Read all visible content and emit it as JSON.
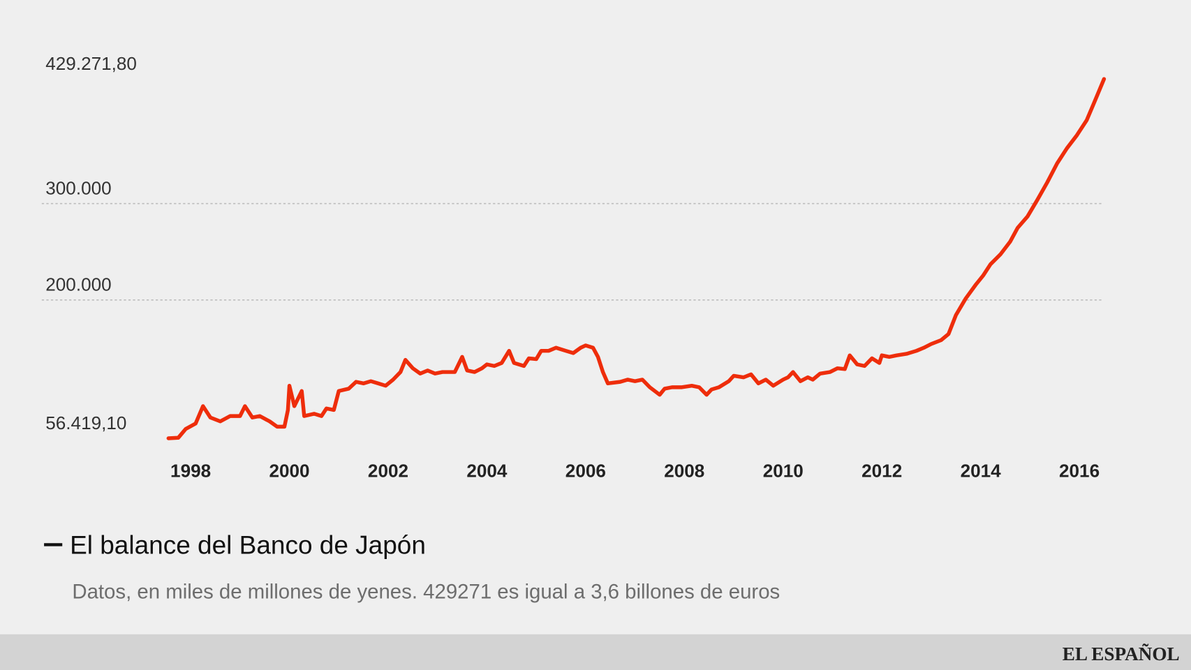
{
  "chart_data": {
    "type": "line",
    "title": "El balance del Banco de Japón",
    "subtitle": "Datos, en miles de millones de yenes. 429271 es igual a 3,6 billones de euros",
    "color": "#ee2d0b",
    "x": [
      1997.55,
      1997.75,
      1997.9,
      1998.1,
      1998.25,
      1998.4,
      1998.6,
      1998.8,
      1999.0,
      1999.1,
      1999.25,
      1999.4,
      1999.6,
      1999.75,
      1999.9,
      1999.97,
      2000.0,
      2000.1,
      2000.25,
      2000.3,
      2000.5,
      2000.65,
      2000.75,
      2000.9,
      2001.0,
      2001.2,
      2001.35,
      2001.5,
      2001.65,
      2001.8,
      2001.95,
      2002.1,
      2002.25,
      2002.35,
      2002.5,
      2002.65,
      2002.8,
      2002.95,
      2003.1,
      2003.35,
      2003.5,
      2003.6,
      2003.75,
      2003.9,
      2004.0,
      2004.15,
      2004.3,
      2004.45,
      2004.55,
      2004.75,
      2004.85,
      2005.0,
      2005.1,
      2005.25,
      2005.4,
      2005.6,
      2005.75,
      2005.9,
      2006.0,
      2006.15,
      2006.25,
      2006.35,
      2006.45,
      2006.7,
      2006.85,
      2007.0,
      2007.15,
      2007.3,
      2007.5,
      2007.6,
      2007.75,
      2007.95,
      2008.15,
      2008.3,
      2008.45,
      2008.55,
      2008.7,
      2008.9,
      2009.0,
      2009.2,
      2009.35,
      2009.5,
      2009.65,
      2009.8,
      2010.0,
      2010.1,
      2010.2,
      2010.35,
      2010.5,
      2010.6,
      2010.75,
      2010.95,
      2011.1,
      2011.25,
      2011.35,
      2011.5,
      2011.65,
      2011.8,
      2011.95,
      2012.0,
      2012.15,
      2012.3,
      2012.5,
      2012.7,
      2012.85,
      2013.0,
      2013.2,
      2013.35,
      2013.5,
      2013.7,
      2013.9,
      2014.05,
      2014.2,
      2014.4,
      2014.6,
      2014.75,
      2014.95,
      2015.15,
      2015.35,
      2015.55,
      2015.75,
      2015.95,
      2016.15,
      2016.3,
      2016.5
    ],
    "values": [
      56419.1,
      57000,
      66100,
      71700,
      89800,
      78000,
      74000,
      79500,
      79500,
      89800,
      78000,
      79500,
      74000,
      68500,
      68500,
      85800,
      111000,
      89800,
      105500,
      79500,
      81900,
      79500,
      87400,
      85800,
      105500,
      107900,
      115000,
      113400,
      115700,
      113400,
      111000,
      117300,
      125200,
      137800,
      129100,
      123600,
      126800,
      123600,
      125200,
      125200,
      140900,
      126800,
      125200,
      129100,
      133100,
      131500,
      134600,
      147200,
      134600,
      131500,
      139400,
      138600,
      147200,
      147200,
      150400,
      147200,
      144900,
      150400,
      152800,
      150400,
      140900,
      125200,
      113400,
      115000,
      117300,
      115700,
      117300,
      109400,
      101600,
      107900,
      109400,
      109400,
      111000,
      109400,
      101600,
      107100,
      109400,
      115700,
      121300,
      119700,
      122800,
      113400,
      117300,
      111000,
      117300,
      119700,
      125200,
      115700,
      119700,
      117300,
      123600,
      125200,
      129100,
      128300,
      142500,
      133100,
      131500,
      139400,
      134600,
      142500,
      140900,
      142500,
      144100,
      147200,
      150400,
      154300,
      158300,
      164600,
      184300,
      201600,
      215700,
      225200,
      237000,
      247200,
      260600,
      274800,
      286600,
      303900,
      322000,
      341700,
      357500,
      370900,
      386600,
      404700,
      429271.8
    ],
    "xlim": [
      1997.5,
      2016.5
    ],
    "xticks": [
      1998,
      2000,
      2002,
      2004,
      2006,
      2008,
      2010,
      2012,
      2014,
      2016
    ],
    "ylim": [
      56419.1,
      429271.8
    ],
    "yticks": [
      {
        "value": 56419.1,
        "label": "56.419,10"
      },
      {
        "value": 200000,
        "label": "200.000"
      },
      {
        "value": 300000,
        "label": "300.000"
      },
      {
        "value": 429271.8,
        "label": "429.271,80"
      }
    ],
    "grid": true
  },
  "footer": {
    "brand": "EL ESPAÑOL"
  }
}
